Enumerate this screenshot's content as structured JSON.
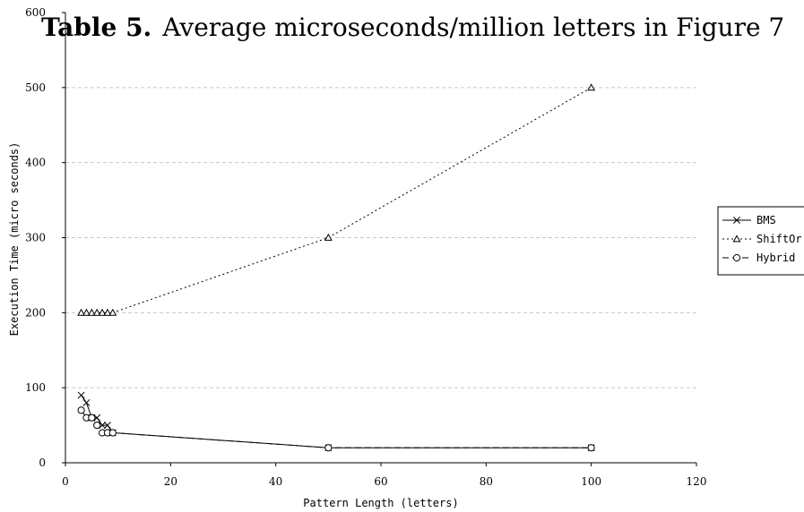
{
  "chart_data": {
    "type": "line",
    "title_prefix": "Table 5.",
    "title_rest": "Average microseconds/million letters in Figure 7",
    "xlabel": "Pattern Length (letters)",
    "ylabel": "Execution Time (micro seconds)",
    "xlim": [
      0,
      120
    ],
    "ylim": [
      0,
      600
    ],
    "x_ticks": [
      "0",
      "20",
      "40",
      "60",
      "80",
      "100",
      "120"
    ],
    "y_ticks": [
      "0",
      "100",
      "200",
      "300",
      "400",
      "500",
      "600"
    ],
    "grid": "horizontal",
    "legend_position": "right",
    "series": [
      {
        "name": "BMS",
        "marker": "x",
        "dash": "solid",
        "x": [
          3,
          4,
          5,
          6,
          7,
          8,
          9,
          50,
          100
        ],
        "y": [
          90,
          80,
          60,
          60,
          50,
          50,
          40,
          20,
          20
        ]
      },
      {
        "name": "ShiftOr",
        "marker": "triangle",
        "dash": "dotted",
        "x": [
          3,
          4,
          5,
          6,
          7,
          8,
          9,
          50,
          100
        ],
        "y": [
          200,
          200,
          200,
          200,
          200,
          200,
          200,
          300,
          500
        ]
      },
      {
        "name": "Hybrid",
        "marker": "circle",
        "dash": "dashed",
        "x": [
          3,
          4,
          5,
          6,
          7,
          8,
          9,
          50,
          100
        ],
        "y": [
          70,
          60,
          60,
          50,
          40,
          40,
          40,
          20,
          20
        ]
      }
    ]
  }
}
